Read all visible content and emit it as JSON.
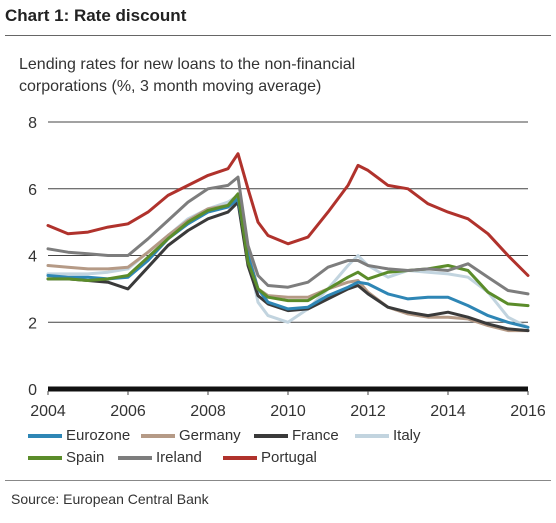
{
  "header": {
    "title": "Chart 1: Rate discount",
    "subtitle": "Lending rates for new loans to the non-financial corporations (%, 3 month moving average)"
  },
  "footer": {
    "source": "Source: European Central Bank"
  },
  "chart_data": {
    "type": "line",
    "title": "Chart 1: Rate discount",
    "subtitle": "Lending rates for new loans to the non-financial corporations (%, 3 month moving average)",
    "xlabel": "",
    "ylabel": "",
    "xlim": [
      2004,
      2016
    ],
    "ylim": [
      0,
      8
    ],
    "x_ticks": [
      2004,
      2006,
      2008,
      2010,
      2012,
      2014,
      2016
    ],
    "y_ticks": [
      0,
      2,
      4,
      6,
      8
    ],
    "grid": "horizontal",
    "legend_position": "bottom",
    "x": [
      2004.0,
      2004.5,
      2005.0,
      2005.5,
      2006.0,
      2006.5,
      2007.0,
      2007.5,
      2008.0,
      2008.5,
      2008.75,
      2009.0,
      2009.25,
      2009.5,
      2010.0,
      2010.5,
      2011.0,
      2011.5,
      2011.75,
      2012.0,
      2012.5,
      2013.0,
      2013.5,
      2014.0,
      2014.5,
      2015.0,
      2015.5,
      2016.0
    ],
    "series": [
      {
        "name": "Eurozone",
        "color": "#2e86b5",
        "values": [
          3.4,
          3.35,
          3.35,
          3.3,
          3.35,
          3.85,
          4.5,
          4.95,
          5.3,
          5.45,
          5.7,
          4.0,
          3.0,
          2.6,
          2.4,
          2.45,
          2.8,
          3.05,
          3.2,
          3.15,
          2.85,
          2.7,
          2.75,
          2.75,
          2.5,
          2.2,
          2.0,
          1.85
        ]
      },
      {
        "name": "Germany",
        "color": "#b59a86",
        "values": [
          3.7,
          3.65,
          3.6,
          3.6,
          3.65,
          4.1,
          4.6,
          5.05,
          5.4,
          5.5,
          5.75,
          4.1,
          3.0,
          2.8,
          2.75,
          2.75,
          3.0,
          3.2,
          3.25,
          2.9,
          2.45,
          2.25,
          2.15,
          2.15,
          2.1,
          1.9,
          1.75,
          1.75
        ]
      },
      {
        "name": "France",
        "color": "#3a3a3a",
        "values": [
          3.3,
          3.3,
          3.25,
          3.2,
          3.0,
          3.65,
          4.3,
          4.75,
          5.1,
          5.3,
          5.6,
          3.7,
          2.8,
          2.55,
          2.35,
          2.4,
          2.7,
          3.0,
          3.1,
          2.85,
          2.45,
          2.3,
          2.2,
          2.3,
          2.15,
          1.95,
          1.8,
          1.75
        ]
      },
      {
        "name": "Italy",
        "color": "#c2d4df",
        "values": [
          3.45,
          3.45,
          3.45,
          3.5,
          3.6,
          4.1,
          4.6,
          5.1,
          5.4,
          5.6,
          5.8,
          4.0,
          2.6,
          2.2,
          2.0,
          2.4,
          3.0,
          3.7,
          4.0,
          3.7,
          3.35,
          3.55,
          3.5,
          3.45,
          3.35,
          2.9,
          2.15,
          1.85
        ]
      },
      {
        "name": "Spain",
        "color": "#5b8c2a",
        "values": [
          3.3,
          3.3,
          3.25,
          3.3,
          3.4,
          3.95,
          4.5,
          5.0,
          5.35,
          5.5,
          5.85,
          3.8,
          3.0,
          2.75,
          2.65,
          2.65,
          3.0,
          3.35,
          3.5,
          3.3,
          3.5,
          3.55,
          3.6,
          3.7,
          3.55,
          2.9,
          2.55,
          2.5
        ]
      },
      {
        "name": "Ireland",
        "color": "#7d7d7d",
        "values": [
          4.2,
          4.1,
          4.05,
          4.0,
          4.0,
          4.5,
          5.05,
          5.6,
          6.0,
          6.1,
          6.35,
          4.3,
          3.4,
          3.1,
          3.05,
          3.2,
          3.65,
          3.85,
          3.85,
          3.7,
          3.6,
          3.55,
          3.6,
          3.55,
          3.75,
          3.35,
          2.95,
          2.85
        ]
      },
      {
        "name": "Portugal",
        "color": "#b0322c",
        "values": [
          4.9,
          4.65,
          4.7,
          4.85,
          4.95,
          5.3,
          5.8,
          6.1,
          6.4,
          6.6,
          7.05,
          6.0,
          5.0,
          4.6,
          4.35,
          4.55,
          5.3,
          6.1,
          6.7,
          6.55,
          6.1,
          6.0,
          5.55,
          5.3,
          5.1,
          4.65,
          4.0,
          3.4
        ]
      }
    ]
  }
}
